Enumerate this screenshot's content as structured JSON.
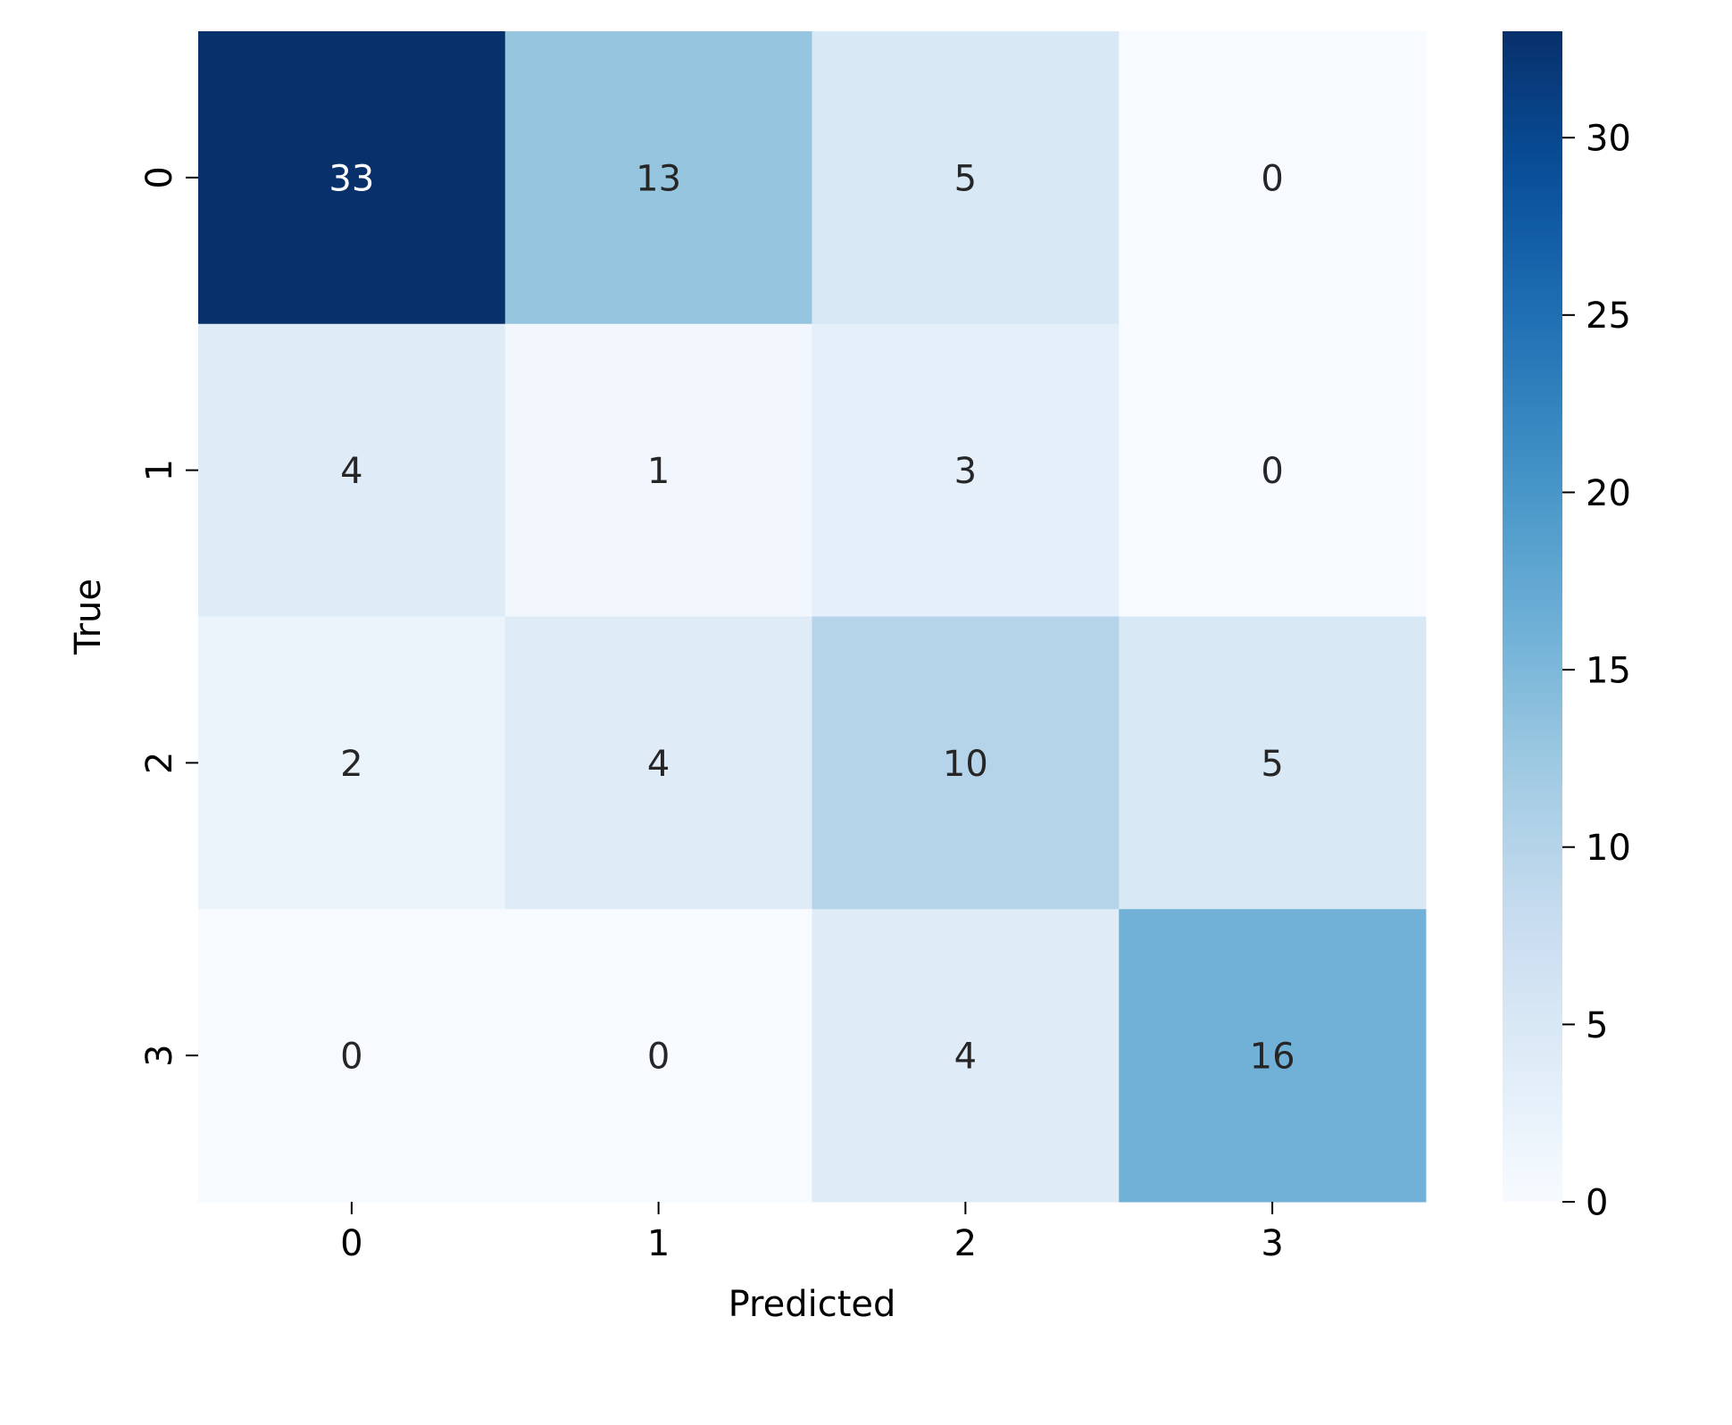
{
  "chart_data": {
    "type": "heatmap",
    "title": "",
    "xlabel": "Predicted",
    "ylabel": "True",
    "x_categories": [
      "0",
      "1",
      "2",
      "3"
    ],
    "y_categories": [
      "0",
      "1",
      "2",
      "3"
    ],
    "values": [
      [
        33,
        13,
        5,
        0
      ],
      [
        4,
        1,
        3,
        0
      ],
      [
        2,
        4,
        10,
        5
      ],
      [
        0,
        0,
        4,
        16
      ]
    ],
    "colormap": "Blues",
    "colorbar": {
      "range": [
        0,
        33
      ],
      "ticks": [
        0,
        5,
        10,
        15,
        20,
        25,
        30
      ]
    },
    "annotation_colors": {
      "light_text": "#ffffff",
      "dark_text": "#262626"
    }
  }
}
